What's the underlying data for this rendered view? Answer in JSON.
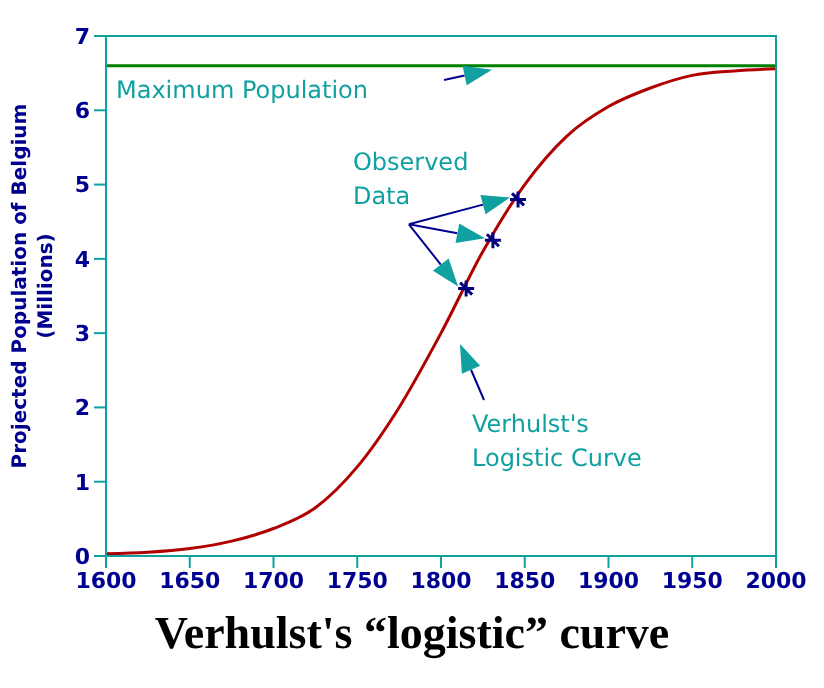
{
  "chart_data": {
    "type": "line",
    "title": "Verhulst's “logistic” curve",
    "ylabel": "Projected Population of Belgium (Millions)",
    "xlim": [
      1600,
      2000
    ],
    "xticks": [
      1600,
      1650,
      1700,
      1750,
      1800,
      1850,
      1900,
      1950,
      2000
    ],
    "ylim": [
      0,
      7
    ],
    "yticks": [
      0,
      1,
      2,
      3,
      4,
      5,
      6,
      7
    ],
    "series": [
      {
        "color": "#b00000",
        "marker": "none",
        "x": [
          1600,
          1625,
          1650,
          1675,
          1700,
          1725,
          1750,
          1775,
          1800,
          1825,
          1850,
          1875,
          1900,
          1925,
          1950,
          1975,
          2000
        ],
        "values": [
          0.03,
          0.05,
          0.1,
          0.2,
          0.37,
          0.65,
          1.2,
          2.0,
          3.0,
          4.1,
          5.0,
          5.65,
          6.05,
          6.3,
          6.47,
          6.53,
          6.56
        ]
      },
      {
        "type": "scatter",
        "color": "#000080",
        "marker": "cross",
        "x": [
          1815,
          1831,
          1846
        ],
        "values": [
          3.6,
          4.25,
          4.8
        ]
      }
    ],
    "ref_lines": [
      {
        "axis": "y",
        "value": 6.6,
        "label": "Maximum Population",
        "color": "#008000"
      }
    ],
    "annotations": [
      {
        "text": "Observed Data",
        "x": 1831,
        "y": 4.25
      },
      "Verhulst's Logistic Curve"
    ]
  }
}
